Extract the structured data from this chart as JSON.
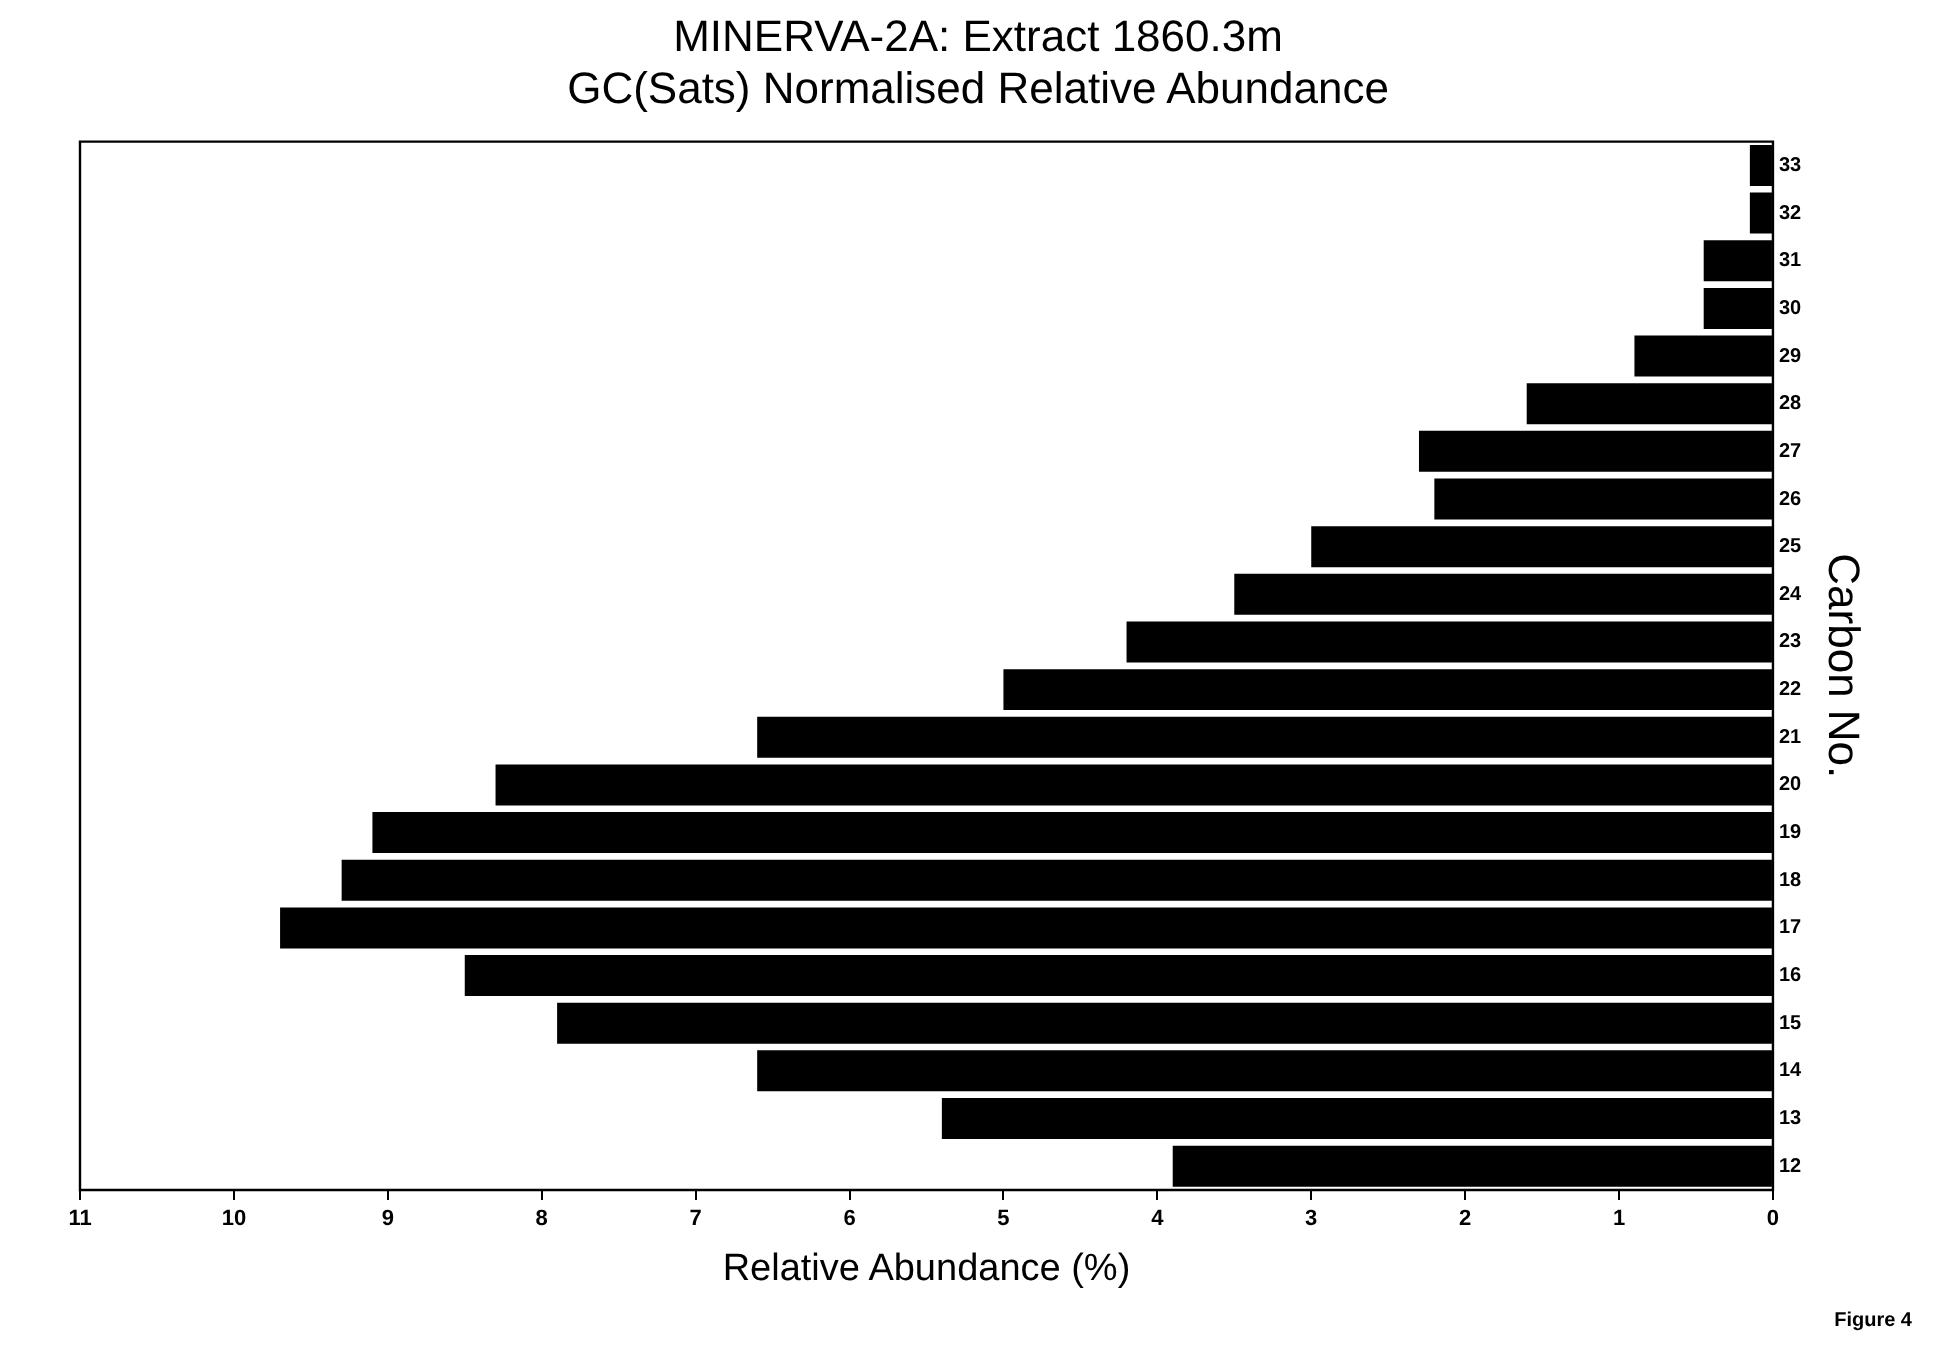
{
  "chart_data": {
    "type": "bar",
    "orientation": "horizontal",
    "title": [
      "MINERVA-2A: Extract 1860.3m",
      "GC(Sats) Normalised Relative Abundance"
    ],
    "ylabel": "Carbon No.",
    "xlabel": "Relative Abundance (%)",
    "categories": [
      "33",
      "32",
      "31",
      "30",
      "29",
      "28",
      "27",
      "26",
      "25",
      "24",
      "23",
      "22",
      "21",
      "20",
      "19",
      "18",
      "17",
      "16",
      "15",
      "14",
      "13",
      "12"
    ],
    "values": [
      0.15,
      0.15,
      0.45,
      0.45,
      0.9,
      1.6,
      2.3,
      2.2,
      3.0,
      3.5,
      4.2,
      5.0,
      6.6,
      8.3,
      9.1,
      9.3,
      9.7,
      8.5,
      7.9,
      6.6,
      5.4,
      3.9
    ],
    "color": "#000000",
    "xlim": [
      11,
      0
    ],
    "xticks": [
      11,
      10,
      9,
      8,
      7,
      6,
      5,
      4,
      3,
      2,
      1,
      0
    ],
    "grid": false,
    "legend": false,
    "annotations": [
      "Figure 4"
    ]
  }
}
